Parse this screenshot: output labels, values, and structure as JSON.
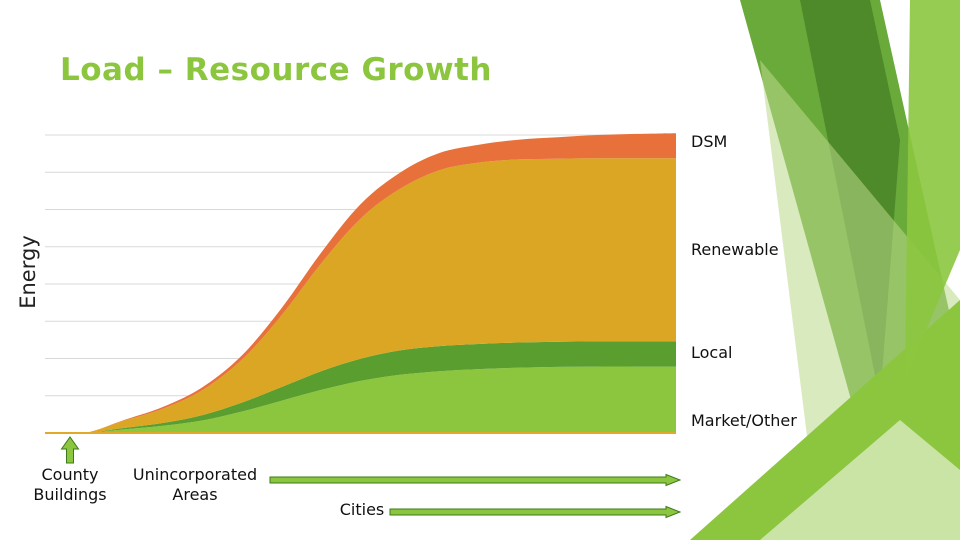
{
  "slide": {
    "title": "Load – Resource Growth"
  },
  "colors": {
    "title": "#8cc63f",
    "market_other": "#8cc63f",
    "local": "#5a9e2f",
    "renewable": "#dba624",
    "dsm": "#e8703a",
    "arrow": "#8cc63f",
    "arrow_stroke": "#3b7a1a",
    "deco_dark": "#4e8a29",
    "deco_mid": "#6aaa3a",
    "deco_light": "#b9d98a"
  },
  "chart_data": {
    "type": "area",
    "stacked": true,
    "ylabel": "Energy",
    "xlabel": "",
    "grid": true,
    "x": [
      0,
      1,
      2,
      3,
      4,
      5,
      6,
      7,
      8,
      9,
      10,
      11,
      12,
      13,
      14,
      15,
      16
    ],
    "series": [
      {
        "name": "Market/Other",
        "values": [
          0,
          0,
          0.1,
          0.2,
          0.35,
          0.6,
          0.9,
          1.2,
          1.45,
          1.62,
          1.72,
          1.78,
          1.82,
          1.84,
          1.85,
          1.85,
          1.85
        ]
      },
      {
        "name": "Local",
        "values": [
          0,
          0,
          0.04,
          0.08,
          0.15,
          0.25,
          0.38,
          0.52,
          0.62,
          0.68,
          0.7,
          0.7,
          0.7,
          0.7,
          0.7,
          0.7,
          0.7
        ]
      },
      {
        "name": "Renewable",
        "values": [
          0,
          0,
          0.2,
          0.4,
          0.7,
          1.2,
          2.0,
          3.0,
          3.9,
          4.5,
          4.9,
          5.05,
          5.1,
          5.1,
          5.1,
          5.1,
          5.1
        ]
      },
      {
        "name": "DSM",
        "values": [
          0,
          0,
          0.02,
          0.05,
          0.08,
          0.12,
          0.2,
          0.3,
          0.4,
          0.45,
          0.48,
          0.5,
          0.55,
          0.6,
          0.65,
          0.68,
          0.7
        ]
      }
    ],
    "ylim": [
      0,
      8.3
    ]
  },
  "annotations": {
    "county_buildings": "County\nBuildings",
    "unincorporated_areas": "Unincorporated\nAreas",
    "cities": "Cities"
  }
}
